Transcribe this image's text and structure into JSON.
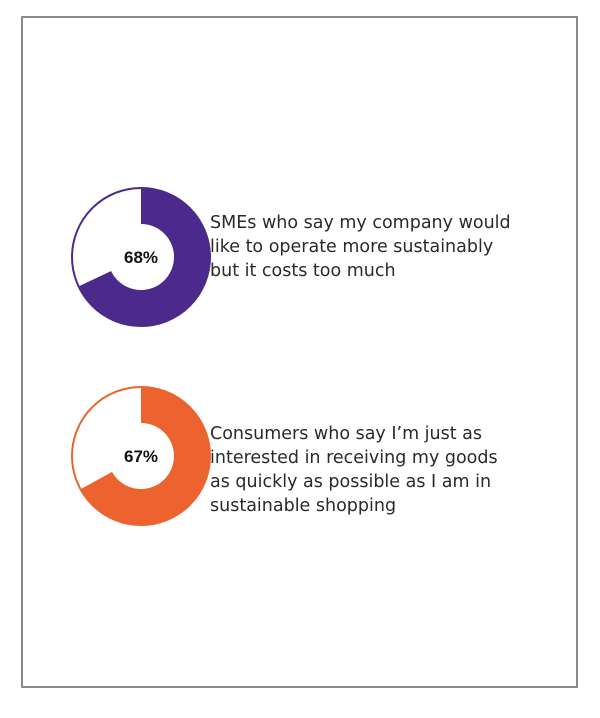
{
  "chart_data": [
    {
      "type": "pie",
      "values": [
        68,
        32
      ],
      "label": "68%",
      "color": "#4b2a8c",
      "caption": [
        "SMEs who say my company would",
        "like to operate more sustainably",
        "but it costs too much"
      ]
    },
    {
      "type": "pie",
      "values": [
        67,
        33
      ],
      "label": "67%",
      "color": "#ec6330",
      "caption": [
        "Consumers who say I’m just as",
        "interested in receiving my goods",
        "as quickly as possible as I am in",
        "sustainable shopping"
      ]
    }
  ]
}
